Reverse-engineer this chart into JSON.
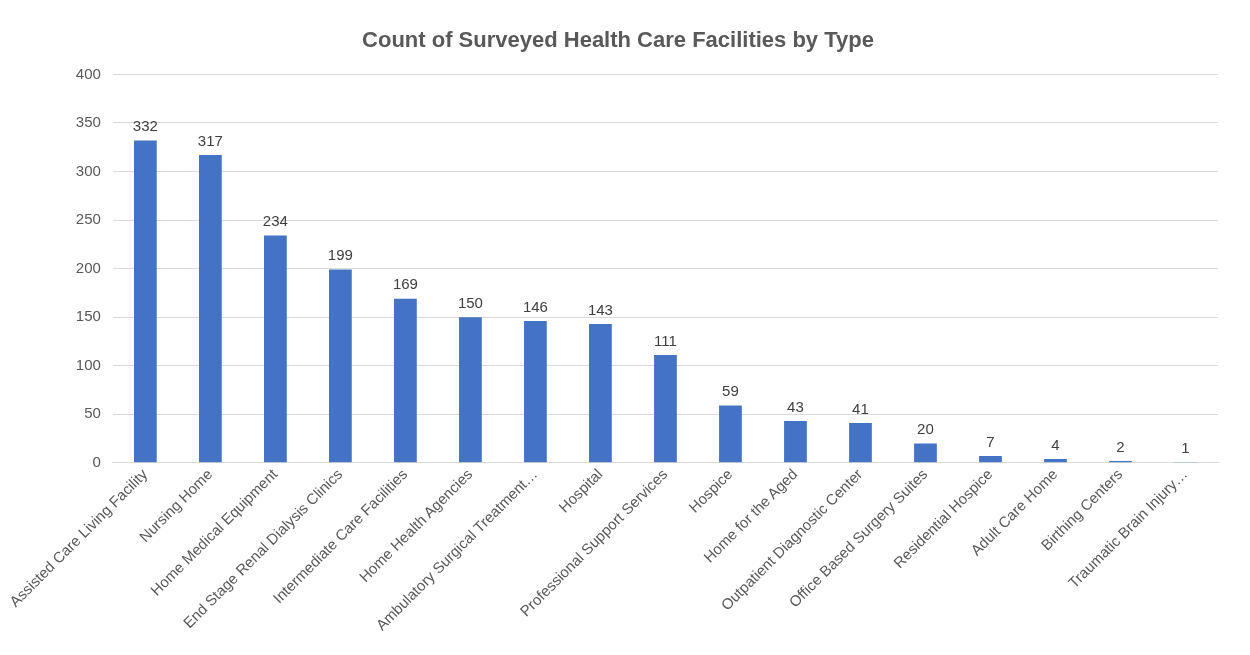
{
  "chart_data": {
    "type": "bar",
    "title": "Count of Surveyed Health Care Facilities by Type",
    "categories": [
      "Assisted Care Living Facility",
      "Nursing Home",
      "Home Medical Equipment",
      "End Stage Renal Dialysis Clinics",
      "Intermediate Care Facilities",
      "Home Health Agencies",
      "Ambulatory Surgical Treatment…",
      "Hospital",
      "Professional Support Services",
      "Hospice",
      "Home for the Aged",
      "Outpatient Diagnostic Center",
      "Office Based Surgery Suites",
      "Residential Hospice",
      "Adult Care Home",
      "Birthing Centers",
      "Traumatic Brain Injury…"
    ],
    "values": [
      332,
      317,
      234,
      199,
      169,
      150,
      146,
      143,
      111,
      59,
      43,
      41,
      20,
      7,
      4,
      2,
      1
    ],
    "color": "#4472c4",
    "ylim": [
      0,
      400
    ],
    "yticks": [
      0,
      50,
      100,
      150,
      200,
      250,
      300,
      350,
      400
    ],
    "grid": "y",
    "legend": false,
    "data_labels": true
  }
}
